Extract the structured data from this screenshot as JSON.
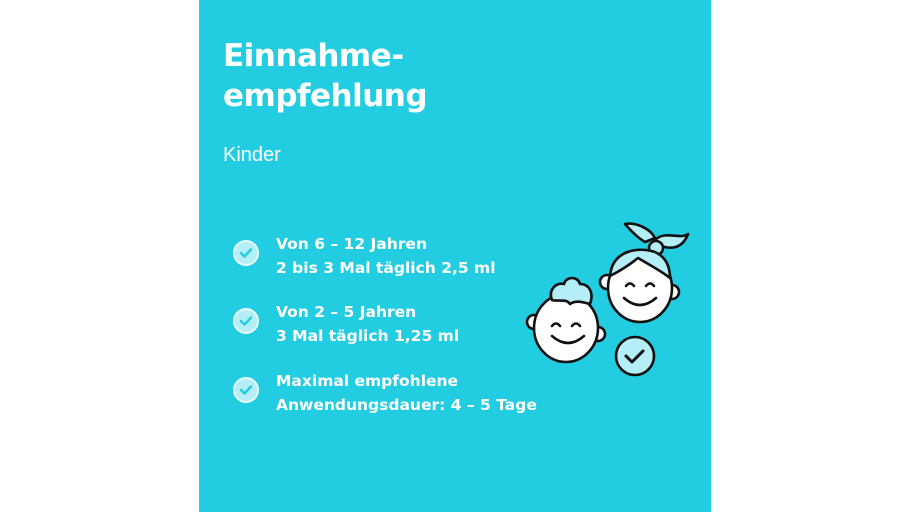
{
  "title_line1": "Einnahme-",
  "title_line2": "empfehlung",
  "subtitle": "Kinder",
  "items": [
    {
      "line1": "Von 6 – 12 Jahren",
      "line2": "2 bis 3 Mal täglich 2,5 ml"
    },
    {
      "line1": "Von 2 – 5 Jahren",
      "line2": "3 Mal täglich 1,25 ml"
    },
    {
      "line1": "Maximal empfohlene",
      "line2": "Anwendungsdauer: 4 – 5 Tage"
    }
  ],
  "colors": {
    "background": "#22cde1",
    "check_fill": "#b4eef6",
    "text": "#ffffff"
  },
  "icons": [
    "check-circle-icon",
    "children-faces-illustration"
  ]
}
